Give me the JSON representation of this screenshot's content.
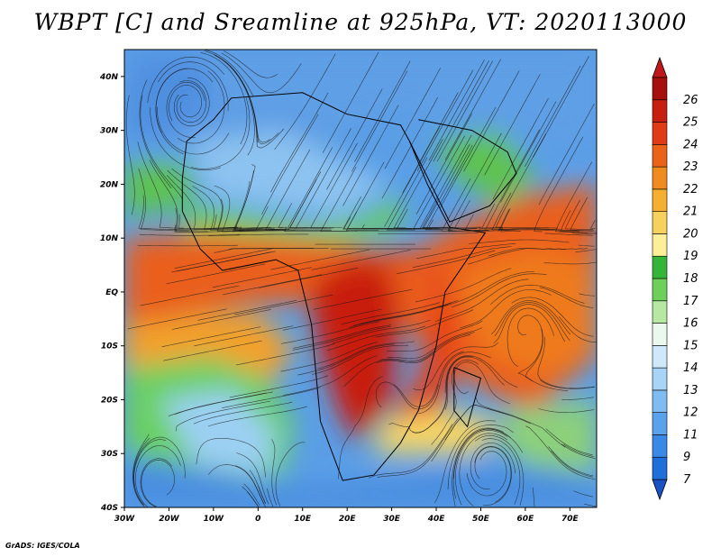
{
  "title": "WBPT [C] and Sreamline at 925hPa, VT: 2020113000",
  "credit": "GrADS: IGES/COLA",
  "map": {
    "lon_range": [
      -30,
      76
    ],
    "lat_range": [
      -40,
      45
    ],
    "lon_ticks": [
      {
        "value": -30,
        "label": "30W"
      },
      {
        "value": -20,
        "label": "20W"
      },
      {
        "value": -10,
        "label": "10W"
      },
      {
        "value": 0,
        "label": "0"
      },
      {
        "value": 10,
        "label": "10E"
      },
      {
        "value": 20,
        "label": "20E"
      },
      {
        "value": 30,
        "label": "30E"
      },
      {
        "value": 40,
        "label": "40E"
      },
      {
        "value": 50,
        "label": "50E"
      },
      {
        "value": 60,
        "label": "60E"
      },
      {
        "value": 70,
        "label": "70E"
      }
    ],
    "lat_ticks": [
      {
        "value": 40,
        "label": "40N"
      },
      {
        "value": 30,
        "label": "30N"
      },
      {
        "value": 20,
        "label": "20N"
      },
      {
        "value": 10,
        "label": "10N"
      },
      {
        "value": 0,
        "label": "EQ"
      },
      {
        "value": -10,
        "label": "10S"
      },
      {
        "value": -20,
        "label": "20S"
      },
      {
        "value": -30,
        "label": "30S"
      },
      {
        "value": -40,
        "label": "40S"
      }
    ]
  },
  "colorbar": {
    "levels": [
      {
        "label": "7",
        "color": "#1e6fd9"
      },
      {
        "label": "9",
        "color": "#3a89e6"
      },
      {
        "label": "11",
        "color": "#5aa3ec"
      },
      {
        "label": "12",
        "color": "#7fbcf2"
      },
      {
        "label": "13",
        "color": "#a7d4f7"
      },
      {
        "label": "14",
        "color": "#cfe9fb"
      },
      {
        "label": "15",
        "color": "#eaf8ee"
      },
      {
        "label": "16",
        "color": "#b6e8a2"
      },
      {
        "label": "17",
        "color": "#6ed05a"
      },
      {
        "label": "18",
        "color": "#36b438"
      },
      {
        "label": "19",
        "color": "#fbef9a"
      },
      {
        "label": "20",
        "color": "#f7d15e"
      },
      {
        "label": "21",
        "color": "#f5b032"
      },
      {
        "label": "22",
        "color": "#f08b1f"
      },
      {
        "label": "23",
        "color": "#ea6319"
      },
      {
        "label": "24",
        "color": "#e03a16"
      },
      {
        "label": "25",
        "color": "#c81e10"
      },
      {
        "label": "26",
        "color": "#a50f0c"
      }
    ],
    "under_color": "#1852c4",
    "over_color": "#c0171a"
  }
}
